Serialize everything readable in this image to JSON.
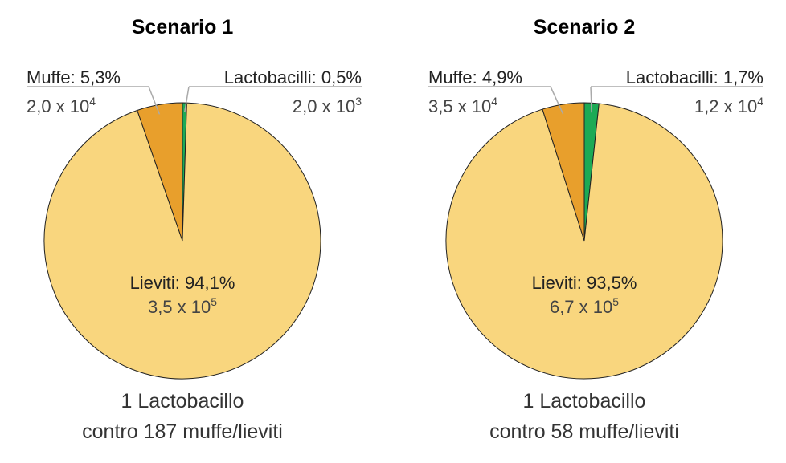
{
  "chart_data": [
    {
      "type": "pie",
      "title": "Scenario 1",
      "slices": [
        {
          "name": "Lactobacilli",
          "percent_label": "Lactobacilli: 0,5%",
          "value": 0.5,
          "count_base": "2,0 x 10",
          "count_exp": "3",
          "color": "#1DAA55"
        },
        {
          "name": "Lieviti",
          "percent_label": "Lieviti: 94,1%",
          "value": 94.1,
          "count_base": "3,5 x 10",
          "count_exp": "5",
          "color": "#F9D67E"
        },
        {
          "name": "Muffe",
          "percent_label": "Muffe: 5,3%",
          "value": 5.3,
          "count_base": "2,0 x 10",
          "count_exp": "4",
          "color": "#E89F2C"
        }
      ],
      "caption": [
        "1 Lactobacillo",
        "contro 187 muffe/lieviti"
      ]
    },
    {
      "type": "pie",
      "title": "Scenario 2",
      "slices": [
        {
          "name": "Lactobacilli",
          "percent_label": "Lactobacilli: 1,7%",
          "value": 1.7,
          "count_base": "1,2 x 10",
          "count_exp": "4",
          "color": "#1DAA55"
        },
        {
          "name": "Lieviti",
          "percent_label": "Lieviti: 93,5%",
          "value": 93.5,
          "count_base": "6,7 x 10",
          "count_exp": "5",
          "color": "#F9D67E"
        },
        {
          "name": "Muffe",
          "percent_label": "Muffe: 4,9%",
          "value": 4.9,
          "count_base": "3,5 x 10",
          "count_exp": "4",
          "color": "#E89F2C"
        }
      ],
      "caption": [
        "1 Lactobacillo",
        "contro 58 muffe/lieviti"
      ]
    }
  ]
}
